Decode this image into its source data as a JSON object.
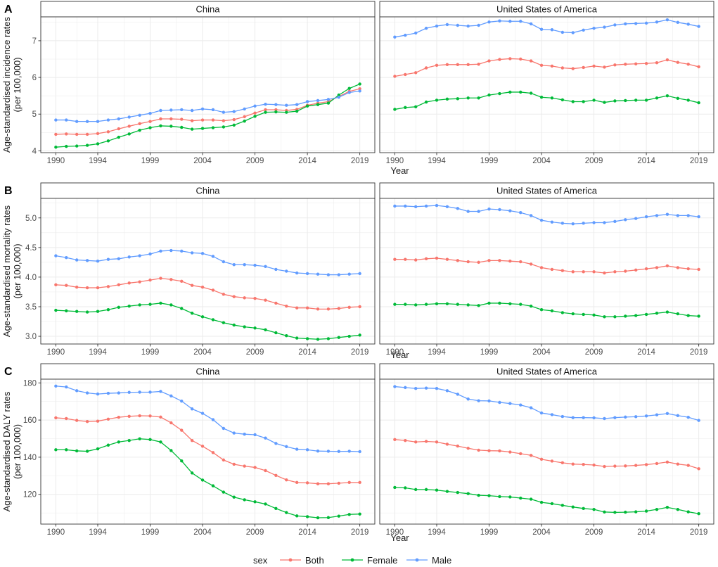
{
  "chart_data": [
    {
      "type": "line",
      "panel_label": "A",
      "ylabel_line1": "Age-standardised incidence rates",
      "ylabel_line2": "(per 100,000)",
      "xlabel": "Year",
      "xlim": [
        1990,
        2019
      ],
      "ylim": [
        3.95,
        7.65
      ],
      "yticks": [
        4,
        5,
        6,
        7
      ],
      "ytick_labels": [
        "4",
        "5",
        "6",
        "7"
      ],
      "xticks": [
        1990,
        1994,
        1999,
        2004,
        2009,
        2014,
        2019
      ],
      "xtick_labels": [
        "1990",
        "1994",
        "1999",
        "2004",
        "2009",
        "2014",
        "2019"
      ],
      "facets": [
        {
          "title": "China",
          "series": [
            {
              "name": "Both",
              "values": [
                4.45,
                4.46,
                4.45,
                4.45,
                4.47,
                4.52,
                4.6,
                4.67,
                4.74,
                4.8,
                4.87,
                4.87,
                4.86,
                4.82,
                4.84,
                4.84,
                4.82,
                4.85,
                4.93,
                5.03,
                5.12,
                5.12,
                5.1,
                5.13,
                5.24,
                5.3,
                5.34,
                5.48,
                5.62,
                5.69
              ]
            },
            {
              "name": "Female",
              "values": [
                4.1,
                4.12,
                4.13,
                4.15,
                4.19,
                4.27,
                4.37,
                4.46,
                4.56,
                4.63,
                4.68,
                4.67,
                4.64,
                4.59,
                4.61,
                4.63,
                4.65,
                4.7,
                4.81,
                4.94,
                5.05,
                5.06,
                5.05,
                5.08,
                5.22,
                5.26,
                5.3,
                5.52,
                5.7,
                5.82
              ]
            },
            {
              "name": "Male",
              "values": [
                4.84,
                4.84,
                4.8,
                4.8,
                4.8,
                4.84,
                4.87,
                4.92,
                4.97,
                5.02,
                5.1,
                5.11,
                5.12,
                5.1,
                5.14,
                5.12,
                5.05,
                5.07,
                5.14,
                5.22,
                5.27,
                5.26,
                5.24,
                5.26,
                5.34,
                5.37,
                5.4,
                5.46,
                5.59,
                5.63
              ]
            }
          ]
        },
        {
          "title": "United States of America",
          "series": [
            {
              "name": "Both",
              "values": [
                6.03,
                6.08,
                6.13,
                6.26,
                6.33,
                6.35,
                6.35,
                6.35,
                6.36,
                6.45,
                6.49,
                6.51,
                6.5,
                6.45,
                6.33,
                6.31,
                6.26,
                6.24,
                6.27,
                6.31,
                6.28,
                6.34,
                6.36,
                6.37,
                6.38,
                6.4,
                6.48,
                6.41,
                6.36,
                6.29
              ]
            },
            {
              "name": "Female",
              "values": [
                5.13,
                5.18,
                5.2,
                5.33,
                5.38,
                5.41,
                5.42,
                5.44,
                5.44,
                5.52,
                5.56,
                5.6,
                5.6,
                5.57,
                5.46,
                5.44,
                5.39,
                5.34,
                5.34,
                5.38,
                5.32,
                5.36,
                5.37,
                5.38,
                5.38,
                5.44,
                5.5,
                5.43,
                5.38,
                5.31
              ]
            },
            {
              "name": "Male",
              "values": [
                7.1,
                7.15,
                7.21,
                7.34,
                7.4,
                7.44,
                7.42,
                7.4,
                7.42,
                7.51,
                7.54,
                7.53,
                7.53,
                7.46,
                7.31,
                7.3,
                7.23,
                7.22,
                7.29,
                7.34,
                7.37,
                7.43,
                7.46,
                7.47,
                7.48,
                7.51,
                7.57,
                7.5,
                7.45,
                7.39
              ]
            }
          ]
        }
      ]
    },
    {
      "type": "line",
      "panel_label": "B",
      "ylabel_line1": "Age-standardised mortality rates",
      "ylabel_line2": "(per 100,000)",
      "xlabel": "Year",
      "xlim": [
        1990,
        2019
      ],
      "ylim": [
        2.87,
        5.33
      ],
      "yticks": [
        3.0,
        3.5,
        4.0,
        4.5,
        5.0
      ],
      "ytick_labels": [
        "3.0",
        "3.5",
        "4.0",
        "4.5",
        "5.0"
      ],
      "xticks": [
        1990,
        1994,
        1999,
        2004,
        2009,
        2014,
        2019
      ],
      "xtick_labels": [
        "1990",
        "1994",
        "1999",
        "2004",
        "2009",
        "2014",
        "2019"
      ],
      "facets": [
        {
          "title": "China",
          "series": [
            {
              "name": "Both",
              "values": [
                3.87,
                3.86,
                3.83,
                3.82,
                3.82,
                3.84,
                3.87,
                3.9,
                3.92,
                3.95,
                3.98,
                3.96,
                3.93,
                3.86,
                3.83,
                3.78,
                3.71,
                3.67,
                3.65,
                3.64,
                3.61,
                3.56,
                3.51,
                3.48,
                3.48,
                3.46,
                3.46,
                3.47,
                3.49,
                3.5
              ]
            },
            {
              "name": "Female",
              "values": [
                3.44,
                3.43,
                3.42,
                3.41,
                3.42,
                3.45,
                3.49,
                3.51,
                3.53,
                3.54,
                3.56,
                3.53,
                3.47,
                3.39,
                3.33,
                3.28,
                3.23,
                3.19,
                3.16,
                3.14,
                3.11,
                3.06,
                3.01,
                2.97,
                2.96,
                2.95,
                2.96,
                2.98,
                3.0,
                3.02
              ]
            },
            {
              "name": "Male",
              "values": [
                4.36,
                4.33,
                4.29,
                4.28,
                4.27,
                4.3,
                4.31,
                4.34,
                4.36,
                4.39,
                4.44,
                4.45,
                4.44,
                4.41,
                4.4,
                4.35,
                4.26,
                4.21,
                4.21,
                4.2,
                4.18,
                4.13,
                4.1,
                4.07,
                4.06,
                4.05,
                4.04,
                4.04,
                4.05,
                4.06
              ]
            }
          ]
        },
        {
          "title": "United States of America",
          "series": [
            {
              "name": "Both",
              "values": [
                4.3,
                4.3,
                4.29,
                4.31,
                4.32,
                4.3,
                4.28,
                4.26,
                4.25,
                4.28,
                4.28,
                4.27,
                4.26,
                4.22,
                4.16,
                4.13,
                4.11,
                4.09,
                4.09,
                4.09,
                4.07,
                4.09,
                4.1,
                4.12,
                4.14,
                4.16,
                4.19,
                4.16,
                4.14,
                4.13
              ]
            },
            {
              "name": "Female",
              "values": [
                3.54,
                3.54,
                3.53,
                3.54,
                3.55,
                3.55,
                3.54,
                3.53,
                3.52,
                3.56,
                3.56,
                3.55,
                3.54,
                3.51,
                3.45,
                3.43,
                3.4,
                3.38,
                3.37,
                3.36,
                3.33,
                3.33,
                3.34,
                3.35,
                3.37,
                3.39,
                3.41,
                3.38,
                3.35,
                3.34
              ]
            },
            {
              "name": "Male",
              "values": [
                5.2,
                5.2,
                5.19,
                5.2,
                5.21,
                5.19,
                5.16,
                5.11,
                5.11,
                5.15,
                5.14,
                5.12,
                5.09,
                5.04,
                4.96,
                4.93,
                4.91,
                4.9,
                4.91,
                4.92,
                4.92,
                4.94,
                4.97,
                4.99,
                5.02,
                5.04,
                5.06,
                5.04,
                5.04,
                5.02
              ]
            }
          ]
        }
      ]
    },
    {
      "type": "line",
      "panel_label": "C",
      "ylabel_line1": "Age-standardised DALY rates",
      "ylabel_line2": "(per 100,000)",
      "xlabel": "Year",
      "xlim": [
        1990,
        2019
      ],
      "ylim": [
        104,
        182
      ],
      "yticks": [
        120,
        140,
        160,
        180
      ],
      "ytick_labels": [
        "120",
        "140",
        "160",
        "180"
      ],
      "xticks": [
        1990,
        1994,
        1999,
        2004,
        2009,
        2014,
        2019
      ],
      "xtick_labels": [
        "1990",
        "1994",
        "1999",
        "2004",
        "2009",
        "2014",
        "2019"
      ],
      "facets": [
        {
          "title": "China",
          "series": [
            {
              "name": "Both",
              "values": [
                161.2,
                160.8,
                159.8,
                159.2,
                159.4,
                160.5,
                161.5,
                162.0,
                162.3,
                162.2,
                161.6,
                158.5,
                154.5,
                149.0,
                145.9,
                142.5,
                138.5,
                136.2,
                135.2,
                134.5,
                132.8,
                130.2,
                127.8,
                126.4,
                126.2,
                125.7,
                125.7,
                126.0,
                126.4,
                126.4
              ]
            },
            {
              "name": "Female",
              "values": [
                144.0,
                144.0,
                143.4,
                143.2,
                144.5,
                146.5,
                148.2,
                149.0,
                149.9,
                149.5,
                148.2,
                143.6,
                138.0,
                131.5,
                127.7,
                124.6,
                121.2,
                118.5,
                117.1,
                116.0,
                114.8,
                112.4,
                110.2,
                108.4,
                108.0,
                107.4,
                107.5,
                108.3,
                109.2,
                109.4
              ]
            },
            {
              "name": "Male",
              "values": [
                178.3,
                177.8,
                175.8,
                174.6,
                174.0,
                174.4,
                174.6,
                174.9,
                175.0,
                175.0,
                175.4,
                173.0,
                170.2,
                166.0,
                163.6,
                160.2,
                155.5,
                153.0,
                152.4,
                152.1,
                150.3,
                147.4,
                145.7,
                144.3,
                144.0,
                143.3,
                143.2,
                143.1,
                143.2,
                143.0
              ]
            }
          ]
        },
        {
          "title": "United States of America",
          "series": [
            {
              "name": "Both",
              "values": [
                149.5,
                149.0,
                148.2,
                148.5,
                148.2,
                147.0,
                146.0,
                144.8,
                143.8,
                143.5,
                143.4,
                142.8,
                141.9,
                141.0,
                138.9,
                137.9,
                137.0,
                136.3,
                136.1,
                135.8,
                135.0,
                135.2,
                135.3,
                135.6,
                136.0,
                136.6,
                137.4,
                136.3,
                135.6,
                133.8
              ]
            },
            {
              "name": "Female",
              "values": [
                123.7,
                123.5,
                122.6,
                122.6,
                122.3,
                121.6,
                121.0,
                120.4,
                119.5,
                119.3,
                118.8,
                118.6,
                118.0,
                117.4,
                115.7,
                115.0,
                114.1,
                113.2,
                112.4,
                111.9,
                110.5,
                110.3,
                110.4,
                110.6,
                111.0,
                111.9,
                113.0,
                111.9,
                110.6,
                109.6
              ]
            },
            {
              "name": "Male",
              "values": [
                178.0,
                177.5,
                177.0,
                177.2,
                177.0,
                175.8,
                173.9,
                171.3,
                170.4,
                170.3,
                169.5,
                168.9,
                168.1,
                166.6,
                163.8,
                162.9,
                161.9,
                161.3,
                161.3,
                161.2,
                160.8,
                161.3,
                161.6,
                161.8,
                162.2,
                162.8,
                163.5,
                162.4,
                161.5,
                159.8
              ]
            }
          ]
        }
      ]
    }
  ],
  "legend": {
    "title": "sex",
    "items": [
      {
        "name": "Both",
        "color": "#F8766D"
      },
      {
        "name": "Female",
        "color": "#00BA38"
      },
      {
        "name": "Male",
        "color": "#619CFF"
      }
    ]
  },
  "colors": {
    "Both": "#F8766D",
    "Female": "#00BA38",
    "Male": "#619CFF"
  }
}
